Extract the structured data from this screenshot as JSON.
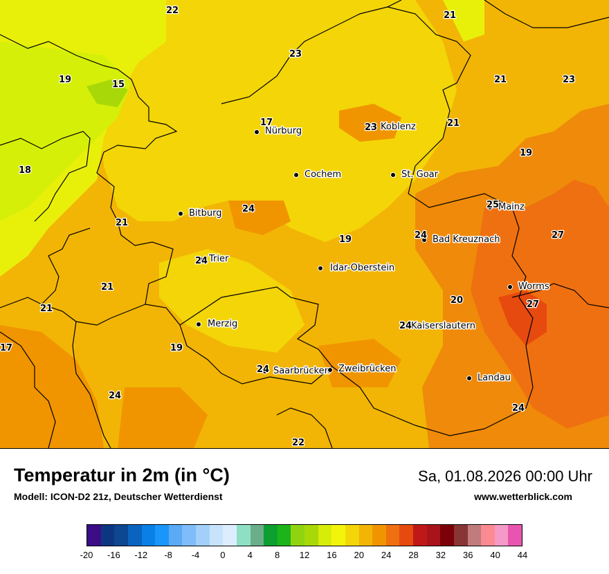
{
  "title": "Temperatur in 2m (in °C)",
  "model": "Modell: ICON-D2 21z, Deutscher Wetterdienst",
  "datetime": "Sa, 01.08.2026 00:00 Uhr",
  "website": "www.wetterblick.com",
  "cities": [
    {
      "name": "Nürburg"
    },
    {
      "name": "Koblenz"
    },
    {
      "name": "Cochem"
    },
    {
      "name": "St. Goar"
    },
    {
      "name": "Bitburg"
    },
    {
      "name": "Mainz"
    },
    {
      "name": "Bad Kreuznach"
    },
    {
      "name": "Trier"
    },
    {
      "name": "Idar-Oberstein"
    },
    {
      "name": "Worms"
    },
    {
      "name": "Merzig"
    },
    {
      "name": "Kaiserslautern"
    },
    {
      "name": "Saarbrücken"
    },
    {
      "name": "Zweibrücken"
    },
    {
      "name": "Landau"
    }
  ],
  "temperature_labels": [
    "22",
    "21",
    "23",
    "19",
    "15",
    "21",
    "23",
    "17",
    "23",
    "21",
    "19",
    "18",
    "24",
    "25",
    "21",
    "19",
    "24",
    "27",
    "24",
    "21",
    "20",
    "27",
    "21",
    "17",
    "19",
    "24",
    "24",
    "24",
    "24",
    "22"
  ],
  "legend": {
    "ticks": [
      "-20",
      "-16",
      "-12",
      "-8",
      "-4",
      "0",
      "4",
      "8",
      "12",
      "16",
      "20",
      "24",
      "28",
      "32",
      "36",
      "40",
      "44"
    ],
    "colors": [
      "#3a0d86",
      "#0c3680",
      "#0d4691",
      "#0a64bf",
      "#0a7fe6",
      "#1a96fa",
      "#5aaaf5",
      "#7fbcfa",
      "#a2d0fa",
      "#c8e4fc",
      "#dceefd",
      "#8ee0c4",
      "#6bae8a",
      "#0da030",
      "#1db41a",
      "#90d410",
      "#a8d808",
      "#d8ec0a",
      "#f2f50a",
      "#f3d508",
      "#f2b505",
      "#f09500",
      "#ef7010",
      "#e64a0e",
      "#c01818",
      "#a8141a",
      "#7c0007",
      "#883535",
      "#c07c7c",
      "#fc8a92",
      "#f59ac6",
      "#e855b0"
    ]
  }
}
